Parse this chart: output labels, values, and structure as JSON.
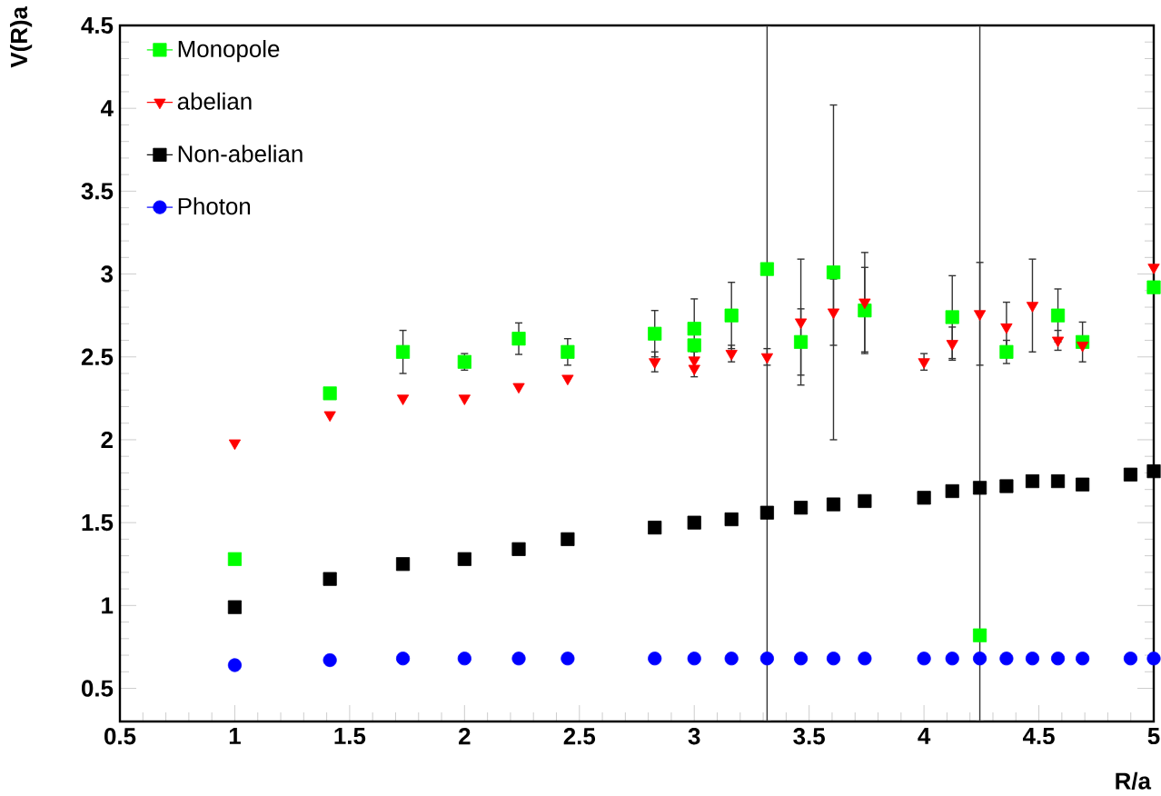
{
  "chart_data": {
    "type": "scatter",
    "xlabel": "R/a",
    "ylabel": "V(R)a",
    "xlim": [
      0.5,
      5
    ],
    "ylim": [
      0.3,
      4.5
    ],
    "xticks": [
      0.5,
      1,
      1.5,
      2,
      2.5,
      3,
      3.5,
      4,
      4.5,
      5
    ],
    "yticks": [
      0.5,
      1,
      1.5,
      2,
      2.5,
      3,
      3.5,
      4,
      4.5
    ],
    "legend": "top left",
    "grid": false,
    "series": [
      {
        "name": "Monopole",
        "color": "#00ff00",
        "marker": "square",
        "x": [
          1,
          1.414,
          1.732,
          2,
          2.236,
          2.449,
          2.828,
          3,
          3,
          3.162,
          3.317,
          3.464,
          3.606,
          3.742,
          4.123,
          4.243,
          4.359,
          4.583,
          4.69,
          5
        ],
        "values": [
          1.28,
          2.28,
          2.53,
          2.47,
          2.61,
          2.53,
          2.64,
          2.67,
          2.57,
          2.75,
          3.03,
          2.59,
          3.01,
          2.78,
          2.74,
          0.82,
          2.53,
          2.75,
          2.59,
          2.92
        ],
        "errors": [
          null,
          null,
          0.13,
          0.05,
          0.095,
          0.08,
          0.14,
          0.18,
          null,
          0.2,
          [
            0.3,
            4.5
          ],
          0.2,
          1.01,
          0.26,
          0.25,
          [
            0.3,
            4.5
          ],
          0.07,
          0.16,
          0.12,
          null
        ]
      },
      {
        "name": "abelian",
        "color": "#ff0000",
        "marker": "triangle",
        "x": [
          1,
          1.414,
          1.732,
          2,
          2.236,
          2.449,
          2.828,
          3,
          3,
          3.162,
          3.317,
          3.464,
          3.606,
          3.742,
          4,
          4.123,
          4.243,
          4.359,
          4.472,
          4.583,
          4.69,
          5
        ],
        "values": [
          1.98,
          2.15,
          2.25,
          2.25,
          2.32,
          2.37,
          2.47,
          2.48,
          2.43,
          2.52,
          2.5,
          2.71,
          2.77,
          2.83,
          2.47,
          2.58,
          2.76,
          2.68,
          2.81,
          2.6,
          2.57,
          3.04
        ],
        "errors": [
          null,
          null,
          null,
          null,
          null,
          null,
          0.06,
          0.05,
          0.05,
          0.05,
          0.05,
          0.38,
          0.2,
          0.3,
          0.05,
          0.1,
          0.31,
          0.15,
          0.28,
          0.06,
          null,
          null
        ]
      },
      {
        "name": "Non-abelian",
        "color": "#000000",
        "marker": "square",
        "x": [
          1,
          1.414,
          1.732,
          2,
          2.236,
          2.449,
          2.828,
          3,
          3.162,
          3.317,
          3.464,
          3.606,
          3.742,
          4,
          4.123,
          4.243,
          4.359,
          4.472,
          4.583,
          4.69,
          4.899,
          5
        ],
        "values": [
          0.99,
          1.16,
          1.25,
          1.28,
          1.34,
          1.4,
          1.47,
          1.5,
          1.52,
          1.56,
          1.59,
          1.61,
          1.63,
          1.65,
          1.69,
          1.71,
          1.72,
          1.75,
          1.75,
          1.73,
          1.79,
          1.81
        ]
      },
      {
        "name": "Photon",
        "color": "#0000ff",
        "marker": "circle",
        "x": [
          1,
          1.414,
          1.732,
          2,
          2.236,
          2.449,
          2.828,
          3,
          3.162,
          3.317,
          3.464,
          3.606,
          3.742,
          4,
          4.123,
          4.243,
          4.359,
          4.472,
          4.583,
          4.69,
          4.899,
          5
        ],
        "values": [
          0.64,
          0.67,
          0.68,
          0.68,
          0.68,
          0.68,
          0.68,
          0.68,
          0.68,
          0.68,
          0.68,
          0.68,
          0.68,
          0.68,
          0.68,
          0.68,
          0.68,
          0.68,
          0.68,
          0.68,
          0.68,
          0.68
        ]
      }
    ]
  }
}
